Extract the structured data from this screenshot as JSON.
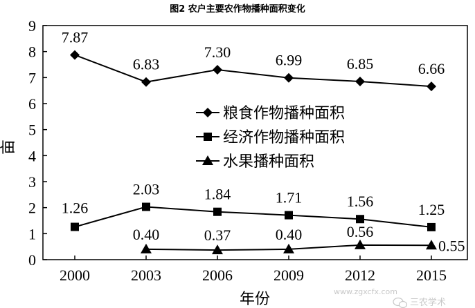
{
  "chart_data": {
    "type": "line",
    "title": "图2 农户主要农作物播种面积变化",
    "xlabel": "年份",
    "ylabel": "亩",
    "categories": [
      "2000",
      "2003",
      "2006",
      "2009",
      "2012",
      "2015"
    ],
    "ylim": [
      0,
      9
    ],
    "yticks": [
      "0",
      "1",
      "2",
      "3",
      "4",
      "5",
      "6",
      "7",
      "8",
      "9"
    ],
    "grid": false,
    "legend_position": "center-right",
    "series": [
      {
        "name": "粮食作物播种面积",
        "marker": "diamond",
        "values": [
          7.87,
          6.83,
          7.3,
          6.99,
          6.85,
          6.66
        ],
        "labels": [
          "7.87",
          "6.83",
          "7.30",
          "6.99",
          "6.85",
          "6.66"
        ]
      },
      {
        "name": "经济作物播种面积",
        "marker": "square",
        "values": [
          1.26,
          2.03,
          1.84,
          1.71,
          1.56,
          1.25
        ],
        "labels": [
          "1.26",
          "2.03",
          "1.84",
          "1.71",
          "1.56",
          "1.25"
        ]
      },
      {
        "name": "水果播种面积",
        "marker": "triangle",
        "values": [
          null,
          0.4,
          0.37,
          0.4,
          0.56,
          0.55
        ],
        "labels": [
          "",
          "0.40",
          "0.37",
          "0.40",
          "0.56",
          "0.55"
        ]
      }
    ]
  },
  "watermark": {
    "site": "www.zgxcfx.com",
    "account": "三农学术"
  }
}
